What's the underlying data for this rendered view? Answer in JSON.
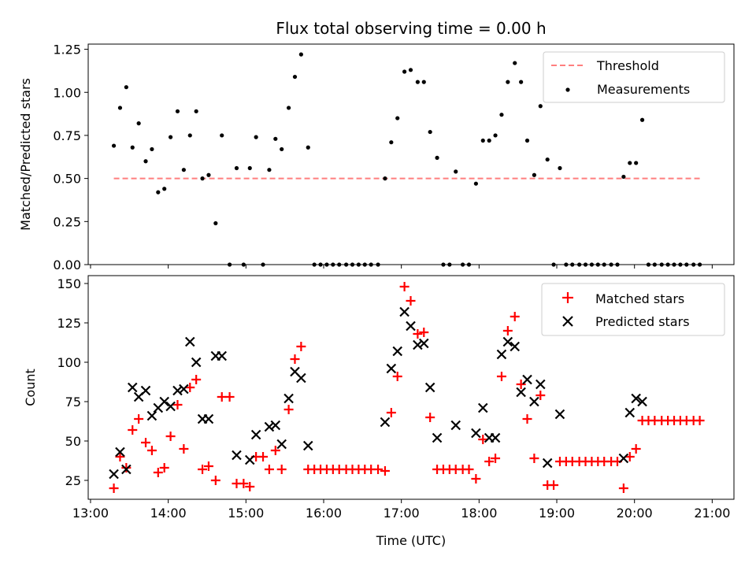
{
  "figure": {
    "title": "Flux total observing time = 0.00 h",
    "xlabel": "Time (UTC)"
  },
  "chart_data": [
    {
      "type": "scatter",
      "name": "ratio",
      "ylabel": "Matched/Predicted stars",
      "xlim": [
        12.97,
        21.28
      ],
      "ylim": [
        0,
        1.28
      ],
      "yticks": [
        0.0,
        0.25,
        0.5,
        0.75,
        1.0,
        1.25
      ],
      "ytick_labels": [
        "0.00",
        "0.25",
        "0.50",
        "0.75",
        "1.00",
        "1.25"
      ],
      "xticks": [
        13,
        14,
        15,
        16,
        17,
        18,
        19,
        20,
        21
      ],
      "xtick_labels": [
        "",
        "",
        "",
        "",
        "",
        "",
        "",
        "",
        ""
      ],
      "threshold": {
        "name": "Threshold",
        "color": "#ff7f7f",
        "y": 0.5,
        "x": [
          13.3,
          20.88
        ]
      },
      "series": [
        {
          "name": "Measurements",
          "color": "#000000",
          "marker": "dot",
          "x": [
            13.3,
            13.38,
            13.46,
            13.54,
            13.62,
            13.71,
            13.79,
            13.87,
            13.95,
            14.03,
            14.12,
            14.2,
            14.28,
            14.36,
            14.44,
            14.52,
            14.61,
            14.69,
            14.79,
            14.88,
            14.97,
            15.05,
            15.13,
            15.22,
            15.3,
            15.38,
            15.46,
            15.55,
            15.63,
            15.71,
            15.8,
            15.88,
            15.96,
            16.04,
            16.12,
            16.2,
            16.29,
            16.37,
            16.45,
            16.53,
            16.61,
            16.7,
            16.79,
            16.87,
            16.95,
            17.04,
            17.12,
            17.21,
            17.29,
            17.37,
            17.46,
            17.54,
            17.62,
            17.7,
            17.79,
            17.87,
            17.96,
            18.05,
            18.13,
            18.21,
            18.29,
            18.37,
            18.46,
            18.54,
            18.62,
            18.71,
            18.79,
            18.88,
            18.96,
            19.04,
            19.12,
            19.2,
            19.29,
            19.37,
            19.45,
            19.53,
            19.61,
            19.7,
            19.78,
            19.86,
            19.94,
            20.02,
            20.1,
            20.18,
            20.26,
            20.35,
            20.43,
            20.51,
            20.59,
            20.67,
            20.76,
            20.84
          ],
          "y": [
            0.69,
            0.91,
            1.03,
            0.68,
            0.82,
            0.6,
            0.67,
            0.42,
            0.44,
            0.74,
            0.89,
            0.55,
            0.75,
            0.89,
            0.5,
            0.52,
            0.24,
            0.75,
            0.0,
            0.56,
            0.0,
            0.56,
            0.74,
            0.0,
            0.55,
            0.73,
            0.67,
            0.91,
            1.09,
            1.22,
            0.68,
            0.0,
            0.0,
            0.0,
            0.0,
            0.0,
            0.0,
            0.0,
            0.0,
            0.0,
            0.0,
            0.0,
            0.5,
            0.71,
            0.85,
            1.12,
            1.13,
            1.06,
            1.06,
            0.77,
            0.62,
            0.0,
            0.0,
            0.54,
            0.0,
            0.0,
            0.47,
            0.72,
            0.72,
            0.75,
            0.87,
            1.06,
            1.17,
            1.06,
            0.72,
            0.52,
            0.92,
            0.61,
            0.0,
            0.56,
            0.0,
            0.0,
            0.0,
            0.0,
            0.0,
            0.0,
            0.0,
            0.0,
            0.0,
            0.51,
            0.59,
            0.59,
            0.84,
            0.0,
            0.0,
            0.0,
            0.0,
            0.0,
            0.0,
            0.0,
            0.0,
            0.0
          ]
        }
      ],
      "legend": {
        "position": "upper right",
        "entries": [
          "Threshold",
          "Measurements"
        ]
      }
    },
    {
      "type": "scatter",
      "name": "counts",
      "ylabel": "Count",
      "xlim": [
        12.97,
        21.28
      ],
      "ylim": [
        13,
        155
      ],
      "yticks": [
        25,
        50,
        75,
        100,
        125,
        150
      ],
      "ytick_labels": [
        "25",
        "50",
        "75",
        "100",
        "125",
        "150"
      ],
      "xticks": [
        13,
        14,
        15,
        16,
        17,
        18,
        19,
        20,
        21
      ],
      "xtick_labels": [
        "13:00",
        "14:00",
        "15:00",
        "16:00",
        "17:00",
        "18:00",
        "19:00",
        "20:00",
        "21:00"
      ],
      "series": [
        {
          "name": "Matched stars",
          "color": "#ff0000",
          "marker": "plus",
          "x": [
            13.3,
            13.38,
            13.46,
            13.54,
            13.62,
            13.71,
            13.79,
            13.87,
            13.95,
            14.03,
            14.12,
            14.2,
            14.28,
            14.36,
            14.44,
            14.52,
            14.61,
            14.69,
            14.79,
            14.88,
            14.97,
            15.05,
            15.13,
            15.22,
            15.3,
            15.38,
            15.46,
            15.55,
            15.63,
            15.71,
            15.8,
            15.88,
            15.96,
            16.04,
            16.12,
            16.2,
            16.29,
            16.37,
            16.45,
            16.53,
            16.61,
            16.7,
            16.79,
            16.87,
            16.95,
            17.04,
            17.12,
            17.21,
            17.29,
            17.37,
            17.46,
            17.54,
            17.62,
            17.7,
            17.79,
            17.87,
            17.96,
            18.05,
            18.13,
            18.21,
            18.29,
            18.37,
            18.46,
            18.54,
            18.62,
            18.71,
            18.79,
            18.88,
            18.96,
            19.04,
            19.12,
            19.2,
            19.29,
            19.37,
            19.45,
            19.53,
            19.61,
            19.7,
            19.78,
            19.86,
            19.94,
            20.02,
            20.1,
            20.18,
            20.26,
            20.35,
            20.43,
            20.51,
            20.59,
            20.67,
            20.76,
            20.84
          ],
          "y": [
            20,
            40,
            33,
            57,
            64,
            49,
            44,
            30,
            33,
            53,
            73,
            45,
            84,
            89,
            32,
            34,
            25,
            78,
            78,
            23,
            23,
            21,
            40,
            40,
            32,
            44,
            32,
            70,
            102,
            110,
            32,
            32,
            32,
            32,
            32,
            32,
            32,
            32,
            32,
            32,
            32,
            32,
            31,
            68,
            91,
            148,
            139,
            118,
            119,
            65,
            32,
            32,
            32,
            32,
            32,
            32,
            26,
            51,
            37,
            39,
            91,
            120,
            129,
            86,
            64,
            39,
            79,
            22,
            22,
            37,
            37,
            37,
            37,
            37,
            37,
            37,
            37,
            37,
            37,
            20,
            40,
            45,
            63,
            63,
            63,
            63,
            63,
            63,
            63,
            63,
            63,
            63
          ]
        },
        {
          "name": "Predicted stars",
          "color": "#000000",
          "marker": "cross",
          "x": [
            13.3,
            13.38,
            13.46,
            13.54,
            13.62,
            13.71,
            13.79,
            13.87,
            13.95,
            14.03,
            14.12,
            14.2,
            14.28,
            14.36,
            14.44,
            14.52,
            14.61,
            14.69,
            14.88,
            15.05,
            15.13,
            15.3,
            15.38,
            15.46,
            15.55,
            15.63,
            15.71,
            15.8,
            16.79,
            16.87,
            16.95,
            17.04,
            17.12,
            17.21,
            17.29,
            17.37,
            17.46,
            17.7,
            17.96,
            18.05,
            18.13,
            18.21,
            18.29,
            18.37,
            18.46,
            18.54,
            18.62,
            18.71,
            18.79,
            18.88,
            19.04,
            19.86,
            19.94,
            20.02,
            20.1
          ],
          "y": [
            29,
            43,
            32,
            84,
            78,
            82,
            66,
            71,
            75,
            72,
            82,
            83,
            113,
            100,
            64,
            64,
            104,
            104,
            41,
            38,
            54,
            59,
            60,
            48,
            77,
            94,
            90,
            47,
            62,
            96,
            107,
            132,
            123,
            111,
            112,
            84,
            52,
            60,
            55,
            71,
            52,
            52,
            105,
            113,
            110,
            81,
            89,
            75,
            86,
            36,
            67,
            39,
            68,
            77,
            75
          ]
        }
      ],
      "legend": {
        "position": "upper right",
        "entries": [
          "Matched stars",
          "Predicted stars"
        ]
      }
    }
  ]
}
